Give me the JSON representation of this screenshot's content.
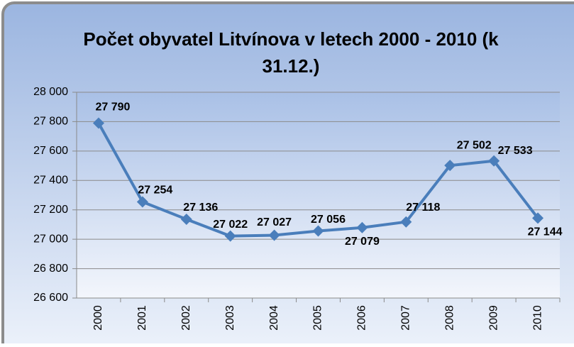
{
  "chart_data": {
    "type": "line",
    "title": "Počet obyvatel Litvínova v letech 2000 - 2010 (k 31.12.)",
    "categories": [
      "2000",
      "2001",
      "2002",
      "2003",
      "2004",
      "2005",
      "2006",
      "2007",
      "2008",
      "2009",
      "2010"
    ],
    "series": [
      {
        "name": "Počet obyvatel",
        "color": "#4a7ebb",
        "values": [
          27790,
          27254,
          27136,
          27022,
          27027,
          27056,
          27079,
          27118,
          27502,
          27533,
          27144
        ],
        "value_labels": [
          "27 790",
          "27 254",
          "27 136",
          "27 022",
          "27 027",
          "27 056",
          "27 079",
          "27 118",
          "27 502",
          "27 533",
          "27 144"
        ]
      }
    ],
    "ylim": [
      26600,
      28000
    ],
    "yticks": [
      {
        "value": 26600,
        "label": "26 600"
      },
      {
        "value": 26800,
        "label": "26 800"
      },
      {
        "value": 27000,
        "label": "27 000"
      },
      {
        "value": 27200,
        "label": "27 200"
      },
      {
        "value": 27400,
        "label": "27 400"
      },
      {
        "value": 27600,
        "label": "27 600"
      },
      {
        "value": 27800,
        "label": "27 800"
      },
      {
        "value": 28000,
        "label": "28 000"
      }
    ],
    "grid": true
  }
}
